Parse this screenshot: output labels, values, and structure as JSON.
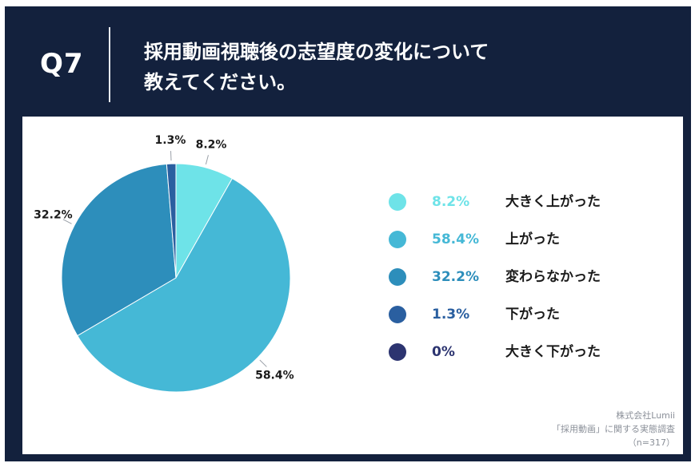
{
  "question": {
    "number": "Q7",
    "text_line1": "採用動画視聴後の志望度の変化について",
    "text_line2": "教えてください。"
  },
  "chart_data": {
    "type": "pie",
    "categories": [
      "大きく上がった",
      "上がった",
      "変わらなかった",
      "下がった",
      "大きく下がった"
    ],
    "values": [
      8.2,
      58.4,
      32.2,
      1.3,
      0
    ],
    "value_labels": [
      "8.2%",
      "58.4%",
      "32.2%",
      "1.3%",
      "0%"
    ],
    "colors": [
      "#6ee3e8",
      "#45b8d6",
      "#2d8ebb",
      "#2a5fa0",
      "#2c3470"
    ],
    "legend_placement": "right"
  },
  "source": {
    "company": "株式会社Lumii",
    "survey": "「採用動画」に関する実態調査",
    "sample": "（n=317）"
  }
}
